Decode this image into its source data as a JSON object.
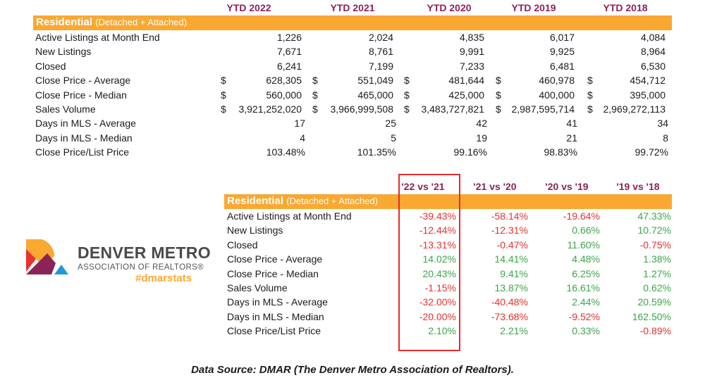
{
  "ytd_table": {
    "title_bold": "Residential",
    "title_rest": "(Detached + Attached)",
    "columns": [
      "YTD 2022",
      "YTD 2021",
      "YTD 2020",
      "YTD 2019",
      "YTD 2018"
    ],
    "rows": [
      {
        "label": "Active Listings at Month End",
        "currency": false,
        "values": [
          "1,226",
          "2,024",
          "4,835",
          "6,017",
          "4,084"
        ]
      },
      {
        "label": "New Listings",
        "currency": false,
        "values": [
          "7,671",
          "8,761",
          "9,991",
          "9,925",
          "8,964"
        ]
      },
      {
        "label": "Closed",
        "currency": false,
        "values": [
          "6,241",
          "7,199",
          "7,233",
          "6,481",
          "6,530"
        ]
      },
      {
        "label": "Close Price - Average",
        "currency": true,
        "values": [
          "628,305",
          "551,049",
          "481,644",
          "460,978",
          "454,712"
        ]
      },
      {
        "label": "Close Price - Median",
        "currency": true,
        "values": [
          "560,000",
          "465,000",
          "425,000",
          "400,000",
          "395,000"
        ]
      },
      {
        "label": "Sales Volume",
        "currency": true,
        "values": [
          "3,921,252,020",
          "3,966,999,508",
          "3,483,727,821",
          "2,987,595,714",
          "2,969,272,113"
        ]
      },
      {
        "label": "Days in MLS - Average",
        "currency": false,
        "short": true,
        "values": [
          "17",
          "25",
          "42",
          "41",
          "34"
        ]
      },
      {
        "label": "Days in MLS - Median",
        "currency": false,
        "short": true,
        "values": [
          "4",
          "5",
          "19",
          "21",
          "8"
        ]
      },
      {
        "label": "Close Price/List Price",
        "currency": false,
        "short": true,
        "values": [
          "103.48%",
          "101.35%",
          "99.16%",
          "98.83%",
          "99.72%"
        ]
      }
    ],
    "currency_symbol": "$"
  },
  "change_table": {
    "title_bold": "Residential",
    "title_rest": "(Detached + Attached)",
    "columns": [
      "'22 vs '21",
      "'21 vs '20",
      "'20 vs '19",
      "'19 vs '18"
    ],
    "highlighted_column": "'22 vs '21",
    "rows": [
      {
        "label": "Active Listings at Month End",
        "values": [
          "-39.43%",
          "-58.14%",
          "-19.64%",
          "47.33%"
        ]
      },
      {
        "label": "New Listings",
        "values": [
          "-12.44%",
          "-12.31%",
          "0.66%",
          "10.72%"
        ]
      },
      {
        "label": "Closed",
        "values": [
          "-13.31%",
          "-0.47%",
          "11.60%",
          "-0.75%"
        ]
      },
      {
        "label": "Close Price - Average",
        "values": [
          "14.02%",
          "14.41%",
          "4.48%",
          "1.38%"
        ]
      },
      {
        "label": "Close Price - Median",
        "values": [
          "20.43%",
          "9.41%",
          "6.25%",
          "1.27%"
        ]
      },
      {
        "label": "Sales Volume",
        "values": [
          "-1.15%",
          "13.87%",
          "16.61%",
          "0.62%"
        ]
      },
      {
        "label": "Days in MLS - Average",
        "values": [
          "-32.00%",
          "-40.48%",
          "2.44%",
          "20.59%"
        ]
      },
      {
        "label": "Days in MLS - Median",
        "values": [
          "-20.00%",
          "-73.68%",
          "-9.52%",
          "162.50%"
        ]
      },
      {
        "label": "Close Price/List Price",
        "values": [
          "2.10%",
          "2.21%",
          "0.33%",
          "-0.89%"
        ]
      }
    ]
  },
  "logo": {
    "name": "DENVER METRO",
    "subtitle": "ASSOCIATION OF REALTORS®",
    "hashtag": "#dmarstats"
  },
  "footer": "Data Source: DMAR (The Denver Metro Association of Realtors).",
  "colors": {
    "orange": "#f9a832",
    "purple": "#8b2358",
    "red": "#e8302e",
    "green": "#3aa64a"
  }
}
